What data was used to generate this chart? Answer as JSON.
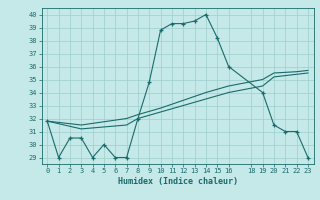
{
  "xlabel": "Humidex (Indice chaleur)",
  "bg_color": "#c5e8e8",
  "line_color": "#1a6b6b",
  "grid_color": "#9ecece",
  "xlim": [
    -0.5,
    23.5
  ],
  "ylim": [
    28.5,
    40.5
  ],
  "yticks": [
    29,
    30,
    31,
    32,
    33,
    34,
    35,
    36,
    37,
    38,
    39,
    40
  ],
  "xticks": [
    0,
    1,
    2,
    3,
    4,
    5,
    6,
    7,
    8,
    9,
    10,
    11,
    12,
    13,
    14,
    15,
    16,
    18,
    19,
    20,
    21,
    22,
    23
  ],
  "line1_x": [
    0,
    1,
    2,
    3,
    4,
    5,
    6,
    7,
    8,
    9,
    10,
    11,
    12,
    13,
    14,
    15,
    16,
    19,
    20,
    21,
    22,
    23
  ],
  "line1_y": [
    31.8,
    29.0,
    30.5,
    30.5,
    29.0,
    30.0,
    29.0,
    29.0,
    32.0,
    34.8,
    38.8,
    39.3,
    39.3,
    39.5,
    40.0,
    38.2,
    36.0,
    34.0,
    31.5,
    31.0,
    31.0,
    29.0
  ],
  "line2_x": [
    0,
    3,
    7,
    8,
    10,
    12,
    14,
    16,
    19,
    20,
    22,
    23
  ],
  "line2_y": [
    31.8,
    31.2,
    31.5,
    32.0,
    32.5,
    33.0,
    33.5,
    34.0,
    34.5,
    35.2,
    35.4,
    35.5
  ],
  "line3_x": [
    0,
    3,
    7,
    8,
    10,
    12,
    14,
    16,
    19,
    20,
    22,
    23
  ],
  "line3_y": [
    31.8,
    31.5,
    32.0,
    32.3,
    32.8,
    33.4,
    34.0,
    34.5,
    35.0,
    35.5,
    35.6,
    35.7
  ]
}
